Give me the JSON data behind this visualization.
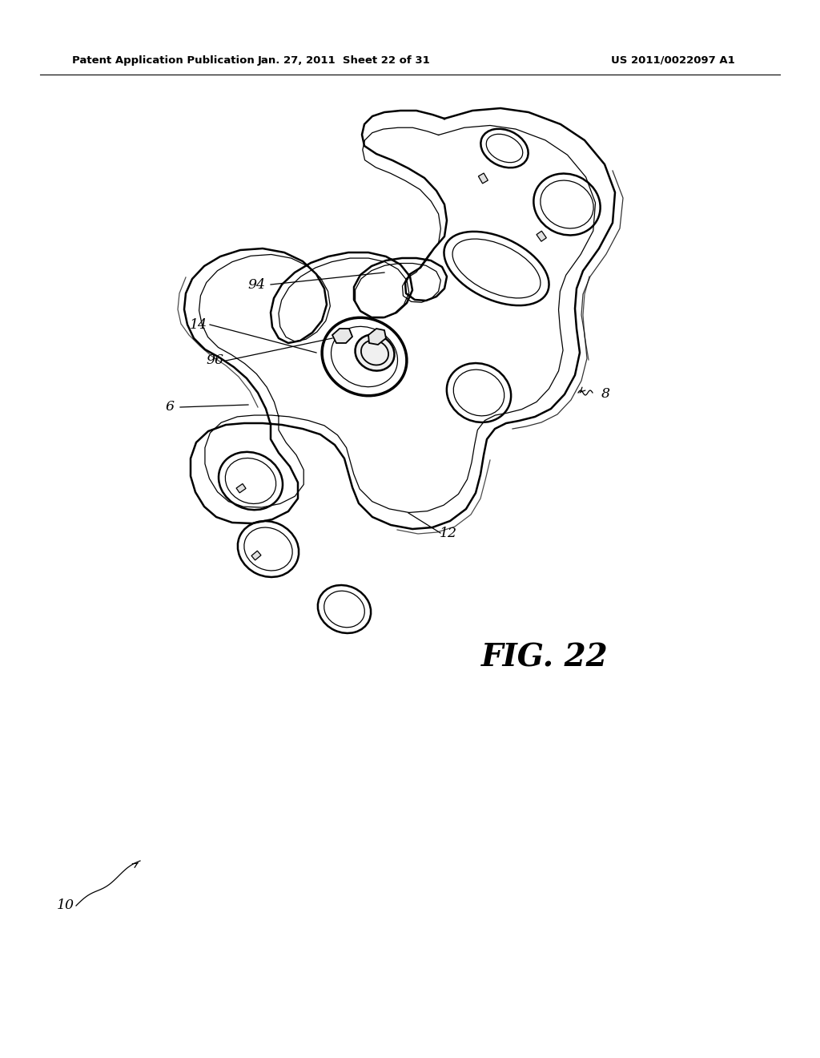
{
  "header_left": "Patent Application Publication",
  "header_center": "Jan. 27, 2011  Sheet 22 of 31",
  "header_right": "US 2011/0022097 A1",
  "fig_label": "FIG. 22",
  "background_color": "#ffffff",
  "line_color": "#000000",
  "page_width": 10.24,
  "page_height": 13.2,
  "dpi": 100
}
